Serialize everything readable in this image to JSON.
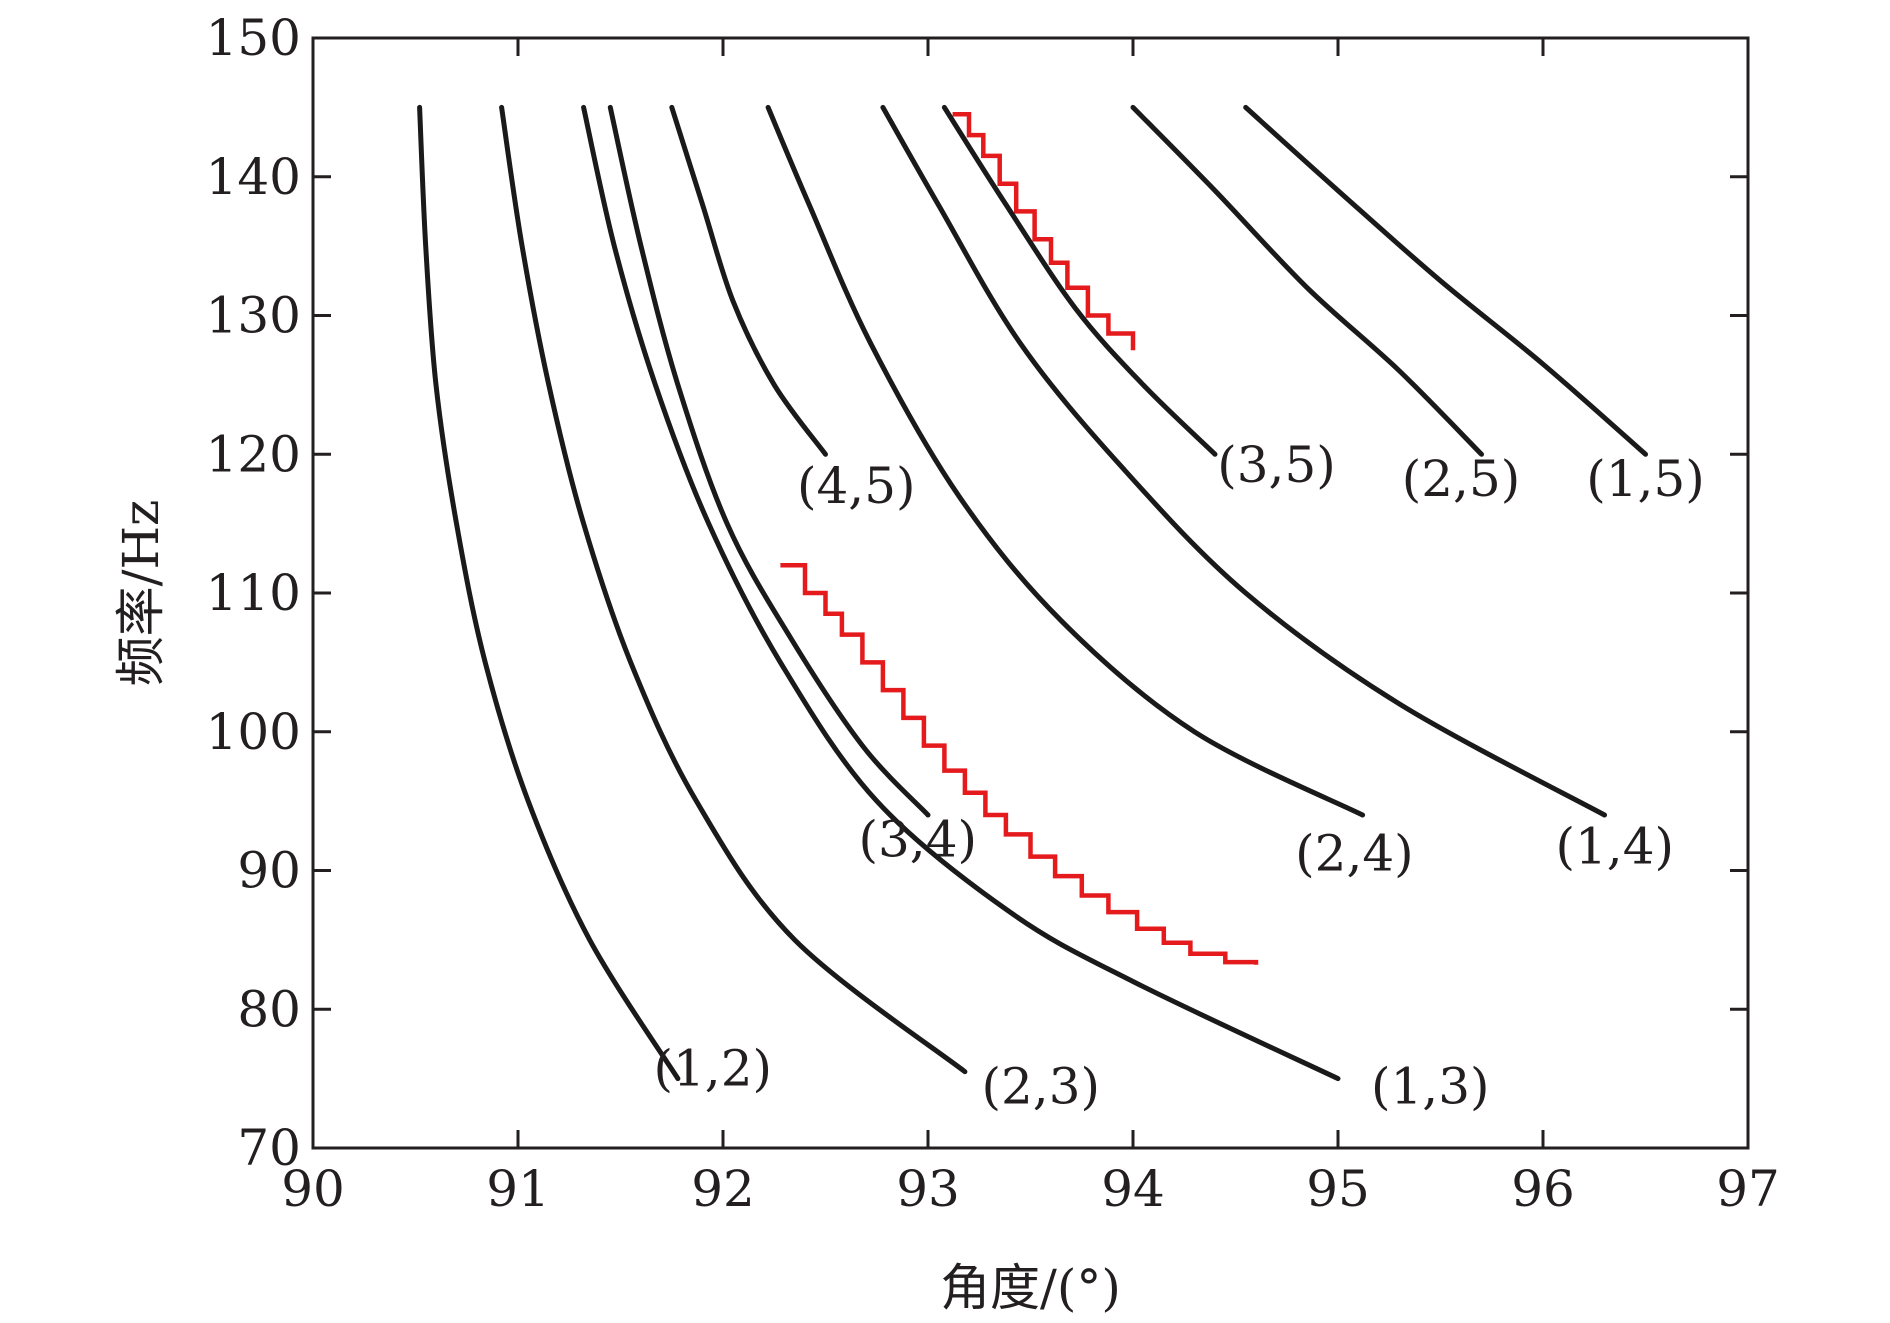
{
  "chart_data": {
    "type": "line",
    "xlabel": "角度/(°)",
    "ylabel": "频率/Hz",
    "xlim": [
      90,
      97
    ],
    "ylim": [
      70,
      150
    ],
    "xticks": [
      90,
      91,
      92,
      93,
      94,
      95,
      96,
      97
    ],
    "yticks": [
      70,
      80,
      90,
      100,
      110,
      120,
      130,
      140,
      150
    ],
    "grid": false,
    "series": [
      {
        "name": "(1,2)",
        "color": "#1a1a1a",
        "points": [
          [
            90.52,
            145
          ],
          [
            90.55,
            135
          ],
          [
            90.6,
            125
          ],
          [
            90.7,
            115
          ],
          [
            90.84,
            105
          ],
          [
            91.05,
            95
          ],
          [
            91.35,
            85
          ],
          [
            91.78,
            75
          ]
        ]
      },
      {
        "name": "(2,3)",
        "color": "#1a1a1a",
        "points": [
          [
            90.92,
            145
          ],
          [
            91.02,
            135
          ],
          [
            91.15,
            125
          ],
          [
            91.32,
            115
          ],
          [
            91.55,
            105
          ],
          [
            91.87,
            95
          ],
          [
            92.35,
            85
          ],
          [
            93.18,
            75.5
          ]
        ]
      },
      {
        "name": "(1,3)",
        "color": "#1a1a1a",
        "points": [
          [
            91.32,
            145
          ],
          [
            91.47,
            135
          ],
          [
            91.67,
            125
          ],
          [
            91.93,
            115
          ],
          [
            92.28,
            105
          ],
          [
            92.75,
            95
          ],
          [
            93.4,
            87
          ],
          [
            94.0,
            82
          ],
          [
            95.0,
            75
          ]
        ]
      },
      {
        "name": "(3,4)",
        "color": "#1a1a1a",
        "points": [
          [
            91.45,
            145
          ],
          [
            91.6,
            135
          ],
          [
            91.78,
            125
          ],
          [
            92.02,
            115
          ],
          [
            92.32,
            107
          ],
          [
            92.68,
            99
          ],
          [
            93.0,
            94
          ]
        ]
      },
      {
        "name": "(4,5)",
        "color": "#1a1a1a",
        "points": [
          [
            91.75,
            145
          ],
          [
            91.9,
            138
          ],
          [
            92.05,
            131
          ],
          [
            92.25,
            125
          ],
          [
            92.5,
            120
          ]
        ]
      },
      {
        "name": "(2,4)",
        "color": "#1a1a1a",
        "points": [
          [
            92.22,
            145
          ],
          [
            92.42,
            138
          ],
          [
            92.72,
            128
          ],
          [
            93.15,
            117
          ],
          [
            93.65,
            108
          ],
          [
            94.3,
            100
          ],
          [
            95.12,
            94
          ]
        ]
      },
      {
        "name": "(1,4)",
        "color": "#1a1a1a",
        "points": [
          [
            92.78,
            145
          ],
          [
            93.05,
            138
          ],
          [
            93.45,
            128
          ],
          [
            93.95,
            119
          ],
          [
            94.55,
            110
          ],
          [
            95.3,
            102
          ],
          [
            96.3,
            94
          ]
        ]
      },
      {
        "name": "(3,5)",
        "color": "#1a1a1a",
        "points": [
          [
            93.08,
            145
          ],
          [
            93.38,
            138
          ],
          [
            93.72,
            130.5
          ],
          [
            94.05,
            125
          ],
          [
            94.4,
            120
          ]
        ]
      },
      {
        "name": "(2,5)",
        "color": "#1a1a1a",
        "points": [
          [
            94.0,
            145
          ],
          [
            94.4,
            139
          ],
          [
            94.85,
            132
          ],
          [
            95.3,
            126
          ],
          [
            95.7,
            120
          ]
        ]
      },
      {
        "name": "(1,5)",
        "color": "#1a1a1a",
        "points": [
          [
            94.55,
            145
          ],
          [
            95.0,
            139
          ],
          [
            95.5,
            132.5
          ],
          [
            96.0,
            126.5
          ],
          [
            96.5,
            120
          ]
        ]
      }
    ],
    "highlight_series": [
      {
        "color": "#e41a1c",
        "style": "stepped",
        "points": [
          [
            92.28,
            112
          ],
          [
            92.4,
            110
          ],
          [
            92.5,
            108.5
          ],
          [
            92.58,
            107
          ],
          [
            92.68,
            105
          ],
          [
            92.78,
            103
          ],
          [
            92.88,
            101
          ],
          [
            92.98,
            99
          ],
          [
            93.08,
            97.2
          ],
          [
            93.18,
            95.6
          ],
          [
            93.28,
            94
          ],
          [
            93.38,
            92.6
          ],
          [
            93.5,
            91
          ],
          [
            93.62,
            89.6
          ],
          [
            93.75,
            88.2
          ],
          [
            93.88,
            87
          ],
          [
            94.02,
            85.8
          ],
          [
            94.15,
            84.8
          ],
          [
            94.28,
            84
          ],
          [
            94.45,
            83.4
          ],
          [
            94.6,
            83.2
          ]
        ]
      },
      {
        "color": "#e41a1c",
        "style": "stepped",
        "points": [
          [
            93.12,
            144.5
          ],
          [
            93.2,
            143
          ],
          [
            93.27,
            141.5
          ],
          [
            93.35,
            139.5
          ],
          [
            93.43,
            137.5
          ],
          [
            93.52,
            135.5
          ],
          [
            93.6,
            133.8
          ],
          [
            93.68,
            132
          ],
          [
            93.78,
            130
          ],
          [
            93.88,
            128.7
          ],
          [
            94.0,
            127.5
          ]
        ]
      }
    ],
    "labels": [
      {
        "text": "(1,2)",
        "x": 91.95,
        "y": 74.5
      },
      {
        "text": "(2,3)",
        "x": 93.55,
        "y": 73.2
      },
      {
        "text": "(1,3)",
        "x": 95.45,
        "y": 73.2
      },
      {
        "text": "(3,4)",
        "x": 92.95,
        "y": 91.0
      },
      {
        "text": "(2,4)",
        "x": 95.08,
        "y": 90.0
      },
      {
        "text": "(1,4)",
        "x": 96.35,
        "y": 90.5
      },
      {
        "text": "(4,5)",
        "x": 92.65,
        "y": 116.5
      },
      {
        "text": "(3,5)",
        "x": 94.7,
        "y": 118.0
      },
      {
        "text": "(2,5)",
        "x": 95.6,
        "y": 117.0
      },
      {
        "text": "(1,5)",
        "x": 96.5,
        "y": 117.0
      }
    ]
  }
}
